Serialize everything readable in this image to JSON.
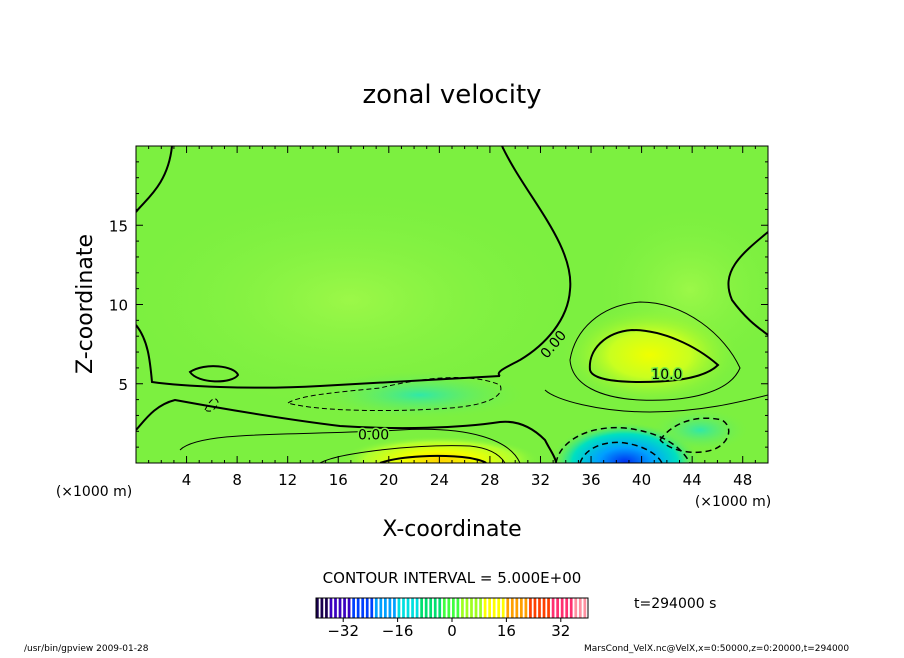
{
  "chart_data": {
    "type": "heatmap",
    "title": "zonal velocity",
    "xlabel": "X-coordinate",
    "ylabel": "Z-coordinate",
    "x_unit_left": "(×1000 m)",
    "x_unit_right": "(×1000 m)",
    "xlim": [
      0,
      50
    ],
    "ylim": [
      0,
      20
    ],
    "x_ticks": [
      4,
      8,
      12,
      16,
      20,
      24,
      28,
      32,
      36,
      40,
      44,
      48
    ],
    "y_ticks": [
      5,
      10,
      15
    ],
    "contour_labels": [
      {
        "text": "0.00",
        "x": 33,
        "z": 7.5
      },
      {
        "text": "10.0",
        "x": 42,
        "z": 5.6
      },
      {
        "text": "0.00",
        "x": 18.8,
        "z": 1.8
      }
    ],
    "contour_interval_text": "CONTOUR INTERVAL = 5.000E+00",
    "colorbar": {
      "range": [
        -40,
        40
      ],
      "ticks": [
        -32,
        -16,
        0,
        16,
        32
      ],
      "colors": [
        "#1a0050",
        "#3a00c0",
        "#0040ff",
        "#00a0ff",
        "#00e0e0",
        "#00e070",
        "#40ff40",
        "#a0ff20",
        "#ffff00",
        "#ffa000",
        "#ff4000",
        "#ff3070",
        "#ff90a0"
      ]
    },
    "time_text": "t=294000 s",
    "footer_left": "/usr/bin/gpview  2009-01-28",
    "footer_right": "MarsCond_VelX.nc@VelX,x=0:50000,z=0:20000,t=294000"
  }
}
